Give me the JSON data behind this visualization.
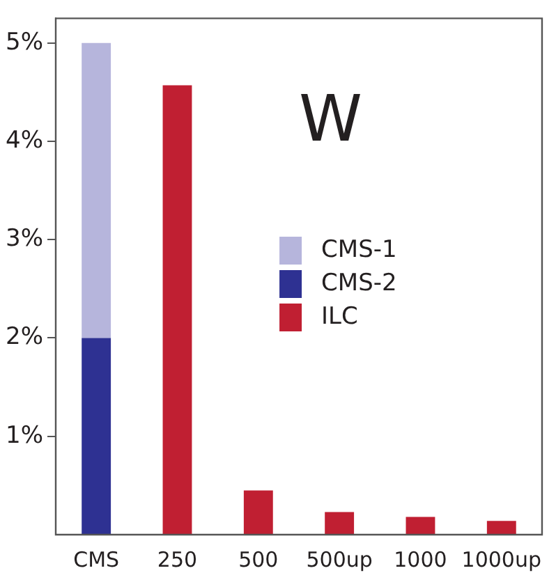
{
  "chart_data": {
    "type": "bar",
    "title": "W",
    "categories": [
      "CMS",
      "250",
      "500",
      "500up",
      "1000",
      "1000up"
    ],
    "series": [
      {
        "name": "CMS-2",
        "color": "#2e3192",
        "values": [
          2,
          null,
          null,
          null,
          null,
          null
        ]
      },
      {
        "name": "CMS-1",
        "color": "#b6b5dc",
        "values": [
          3,
          null,
          null,
          null,
          null,
          null
        ]
      },
      {
        "name": "ILC",
        "color": "#c01f32",
        "values": [
          null,
          4.57,
          0.45,
          0.23,
          0.18,
          0.14
        ]
      }
    ],
    "stacked": true,
    "ylim": [
      0,
      5.25
    ],
    "yticks": [
      {
        "value": 1,
        "label": "1%"
      },
      {
        "value": 2,
        "label": "2%"
      },
      {
        "value": 3,
        "label": "3%"
      },
      {
        "value": 4,
        "label": "4%"
      },
      {
        "value": 5,
        "label": "5%"
      }
    ],
    "grid": false,
    "legend": "center"
  }
}
